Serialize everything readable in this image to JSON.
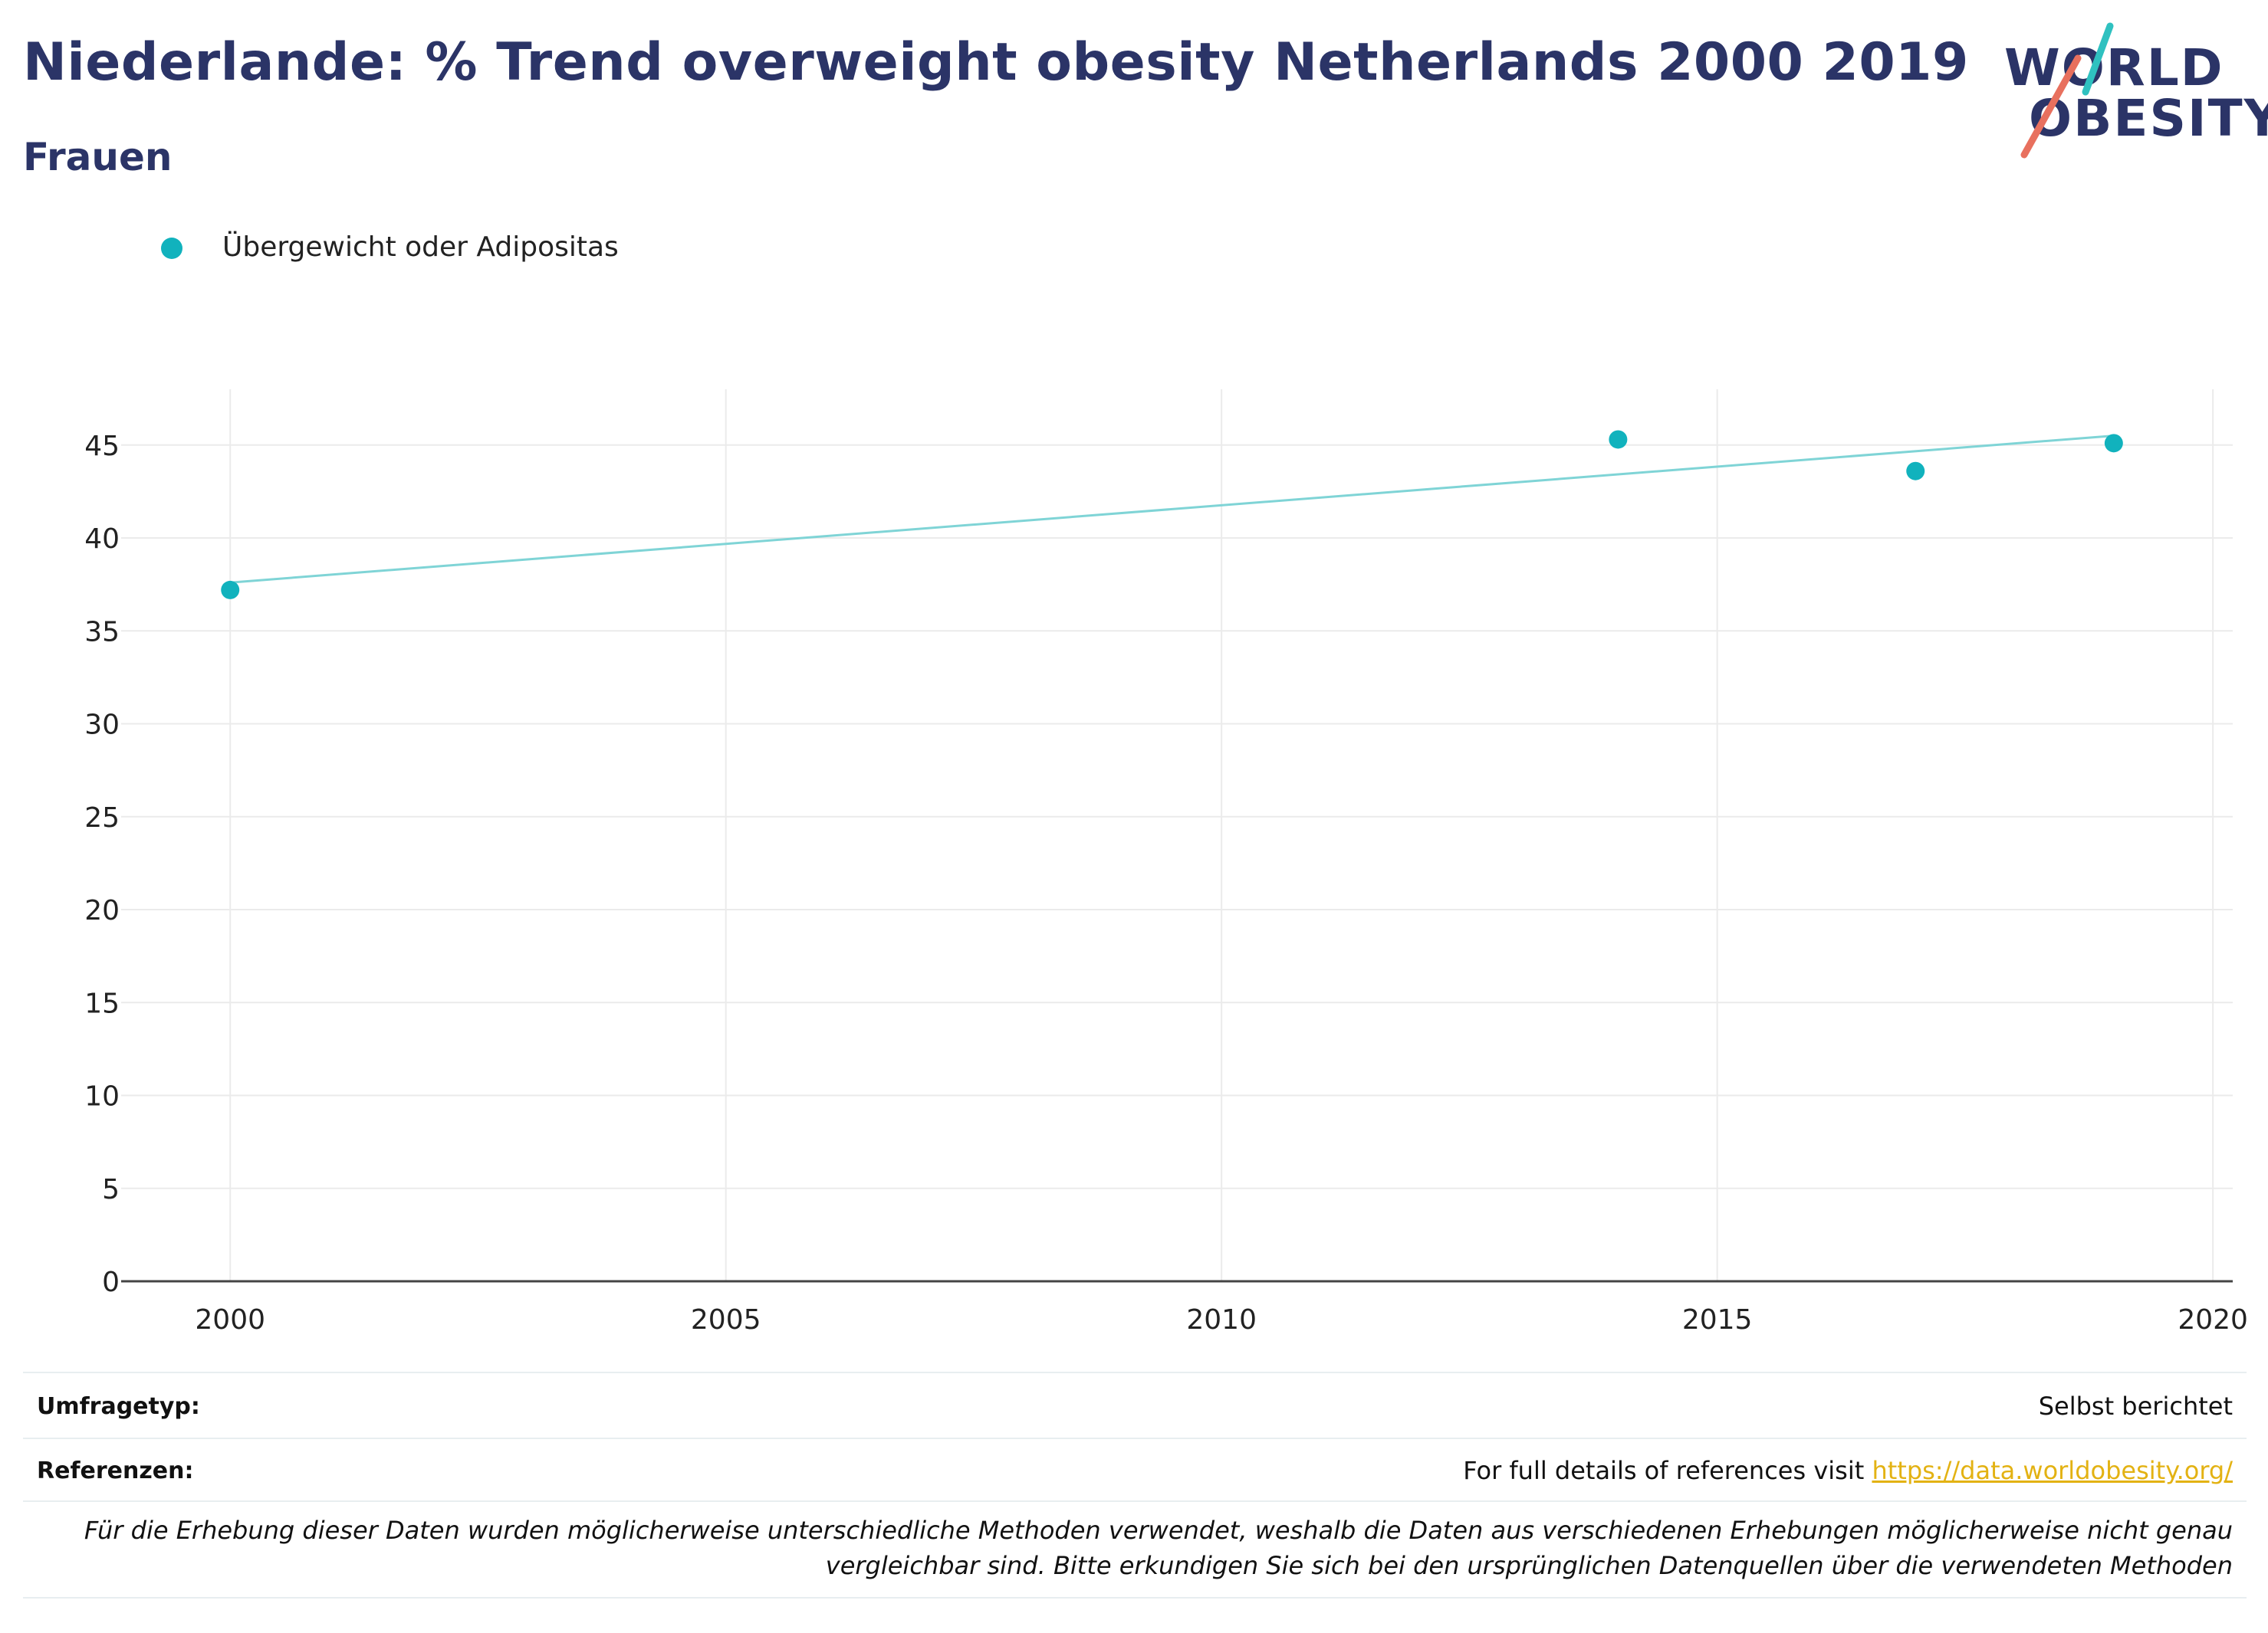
{
  "header": {
    "title": "Niederlande: % Trend overweight obesity Netherlands 2000 2019",
    "subtitle": "Frauen"
  },
  "logo": {
    "line1": "WORLD",
    "line2": "OBESITY",
    "accent_teal": "#2fc1c0",
    "accent_coral": "#e8705e"
  },
  "legend": {
    "items": [
      {
        "label": "Übergewicht oder Adipositas",
        "color": "#11b2bd"
      }
    ]
  },
  "chart_data": {
    "type": "scatter",
    "title": "Niederlande: % Trend overweight obesity Netherlands 2000 2019",
    "subtitle": "Frauen",
    "xlabel": "",
    "ylabel": "",
    "xlim": [
      1998.9,
      2020.2
    ],
    "ylim": [
      0,
      48
    ],
    "xticks": [
      2000,
      2005,
      2010,
      2015,
      2020
    ],
    "yticks": [
      0,
      5,
      10,
      15,
      20,
      25,
      30,
      35,
      40,
      45
    ],
    "grid": true,
    "legend_position": "top-left",
    "series": [
      {
        "name": "Übergewicht oder Adipositas",
        "color": "#11b2bd",
        "points": [
          {
            "x": 2000,
            "y": 37.2
          },
          {
            "x": 2014,
            "y": 45.3
          },
          {
            "x": 2017,
            "y": 43.6
          },
          {
            "x": 2019,
            "y": 45.1
          }
        ]
      }
    ],
    "trendline": {
      "color": "#7fd4d6",
      "points": [
        {
          "x": 2000,
          "y": 37.6
        },
        {
          "x": 2019,
          "y": 45.5
        }
      ]
    }
  },
  "footer": {
    "survey_label": "Umfragetyp:",
    "survey_value": "Selbst berichtet",
    "references_label": "Referenzen:",
    "references_text": "For full details of references visit ",
    "references_link": "https://data.worldobesity.org/",
    "note": "Für die Erhebung dieser Daten wurden möglicherweise unterschiedliche Methoden verwendet, weshalb die Daten aus verschiedenen Erhebungen möglicherweise nicht genau vergleichbar sind. Bitte erkundigen Sie sich bei den ursprünglichen Datenquellen über die verwendeten Methoden"
  }
}
